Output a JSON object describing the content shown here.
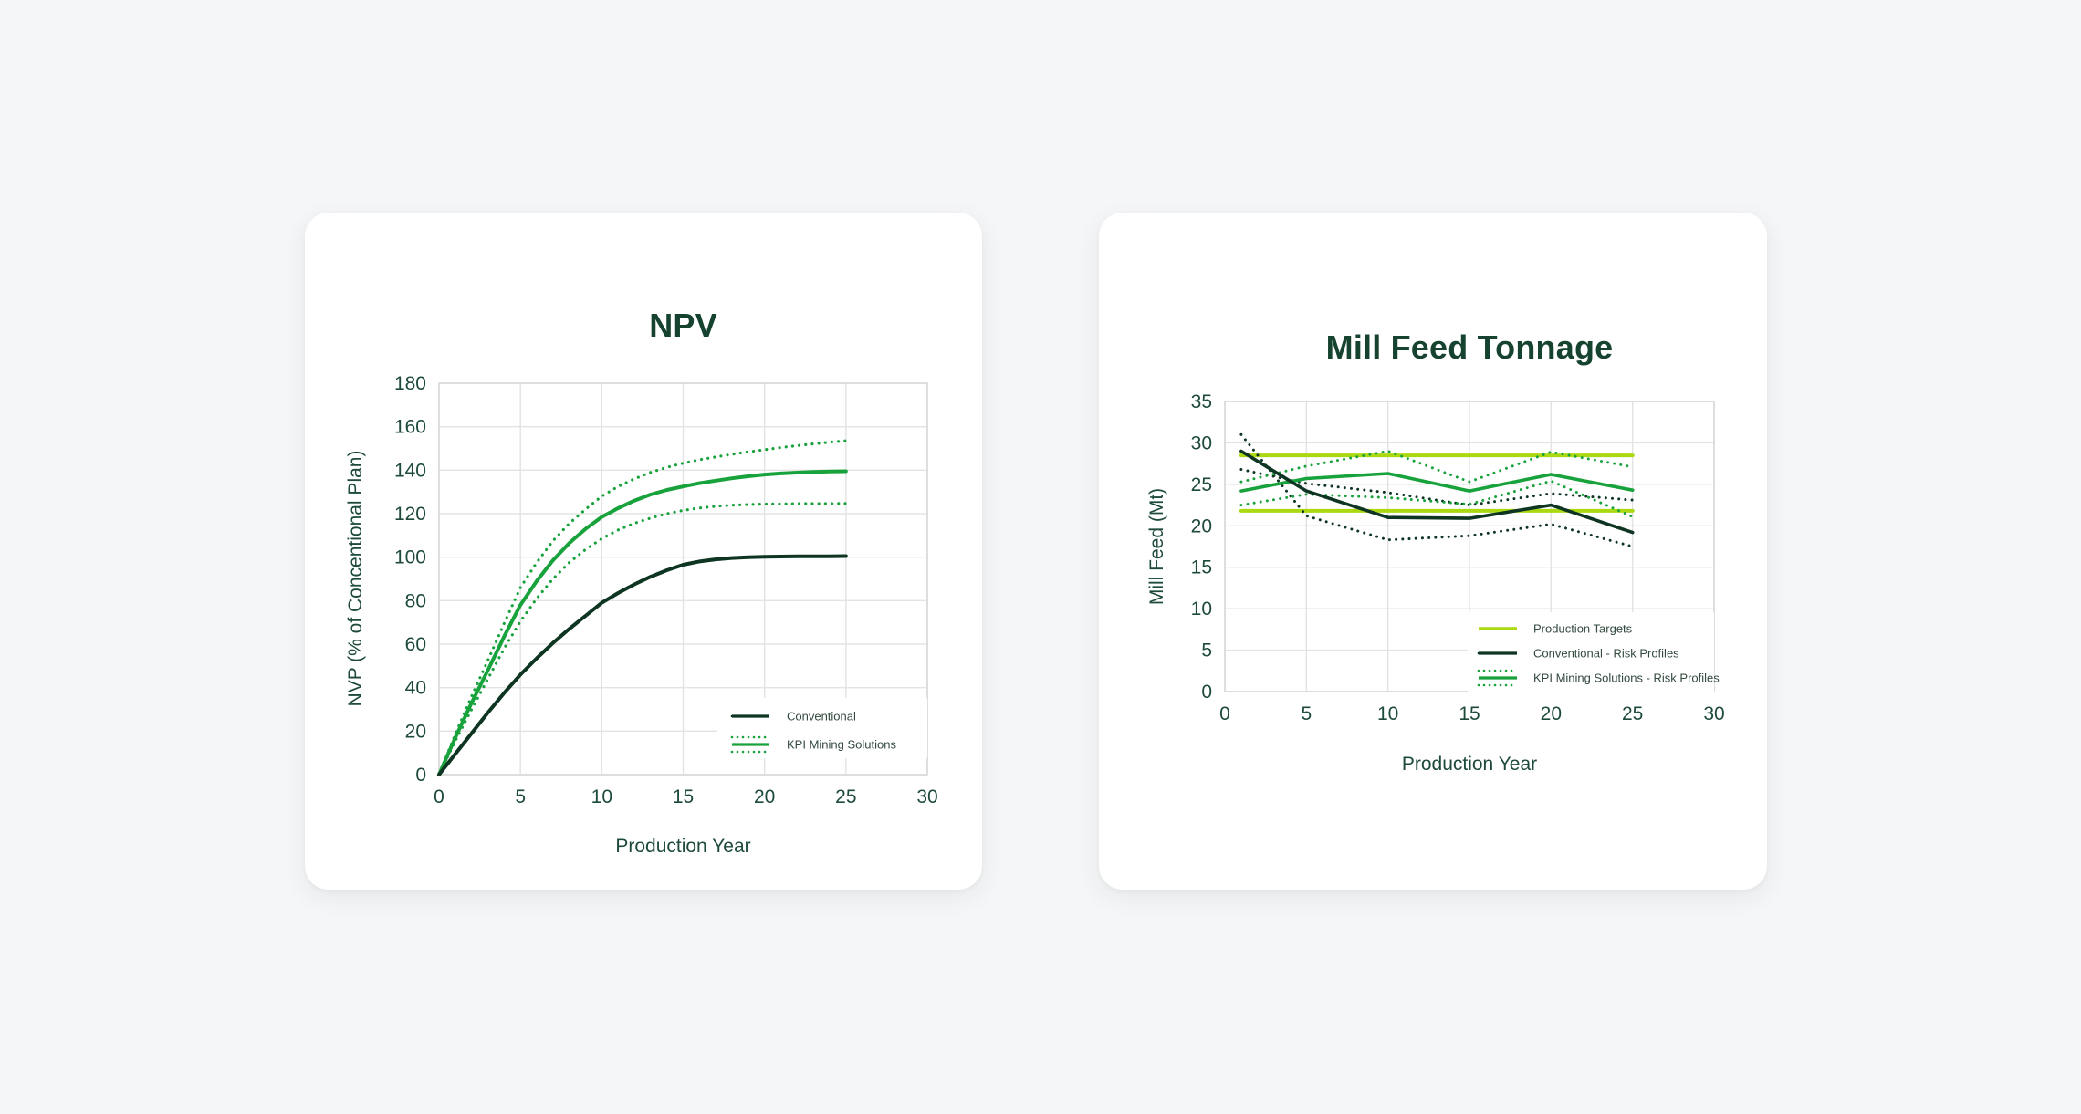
{
  "colors": {
    "page_bg": "#f5f6f8",
    "card_bg": "#ffffff",
    "dark": "#0d3522",
    "green": "#17a23b",
    "lime": "#abd911",
    "grid": "#e3e3e3",
    "plot_border": "#d9d9d9",
    "title_text": "#16432f",
    "axis_text": "#1d4a3a",
    "legend_text": "#32493e"
  },
  "chart_data": [
    {
      "type": "line",
      "title": "NPV",
      "xlabel": "Production Year",
      "ylabel": "NVP (% of Concentional Plan)",
      "xlim": [
        0,
        30
      ],
      "ylim": [
        0,
        180
      ],
      "xticks": [
        0,
        5,
        10,
        15,
        20,
        25,
        30
      ],
      "yticks": [
        180,
        160,
        140,
        120,
        100,
        80,
        60,
        40,
        20,
        0
      ],
      "grid": true,
      "legend_position": "lower-right-inside",
      "x": [
        0,
        1,
        2,
        3,
        4,
        5,
        6,
        7,
        8,
        9,
        10,
        11,
        12,
        13,
        14,
        15,
        16,
        17,
        18,
        19,
        20,
        21,
        22,
        23,
        24,
        25
      ],
      "series": [
        {
          "name": "KPI Mining Solutions - Upper Risk Profile",
          "color_key": "green",
          "style": "dotted",
          "width": 3.2,
          "values": [
            0,
            18.5,
            36,
            52.5,
            69.5,
            86,
            97.5,
            107.5,
            115.5,
            122,
            128,
            132.5,
            136,
            139,
            141.3,
            143.2,
            144.8,
            146.1,
            147.3,
            148.4,
            149.4,
            150.4,
            151.3,
            152.1,
            152.9,
            153.5
          ]
        },
        {
          "name": "KPI Mining Solutions - Lower Risk Profile",
          "color_key": "green",
          "style": "dotted",
          "width": 3.2,
          "values": [
            0,
            15.5,
            30,
            44,
            58,
            70.5,
            81,
            90,
            97.5,
            103.5,
            108.5,
            112.5,
            115.6,
            118,
            120,
            121.5,
            122.6,
            123.4,
            123.9,
            124.2,
            124.4,
            124.5,
            124.6,
            124.6,
            124.6,
            124.7
          ]
        },
        {
          "name": "KPI Mining Solutions",
          "color_key": "green",
          "style": "solid",
          "width": 4,
          "values": [
            0,
            17,
            33,
            48,
            63.5,
            78,
            89,
            98.5,
            106.5,
            113,
            118.5,
            122.5,
            126,
            128.8,
            130.9,
            132.5,
            134,
            135.2,
            136.3,
            137.2,
            138,
            138.5,
            138.9,
            139.2,
            139.4,
            139.5
          ]
        },
        {
          "name": "Conventional",
          "color_key": "dark",
          "style": "solid",
          "width": 4,
          "values": [
            0,
            9.5,
            19,
            28.5,
            37.5,
            46,
            53.5,
            60.5,
            67,
            73,
            79,
            83.5,
            87.5,
            91,
            94,
            96.5,
            98,
            99,
            99.6,
            100,
            100.2,
            100.3,
            100.4,
            100.4,
            100.4,
            100.5
          ]
        }
      ],
      "legend": [
        {
          "label": "Conventional",
          "swatch": "solid+dots:dark"
        },
        {
          "label": "KPI Mining Solutions",
          "swatch": "band:green"
        }
      ]
    },
    {
      "type": "line",
      "title": "Mill Feed Tonnage",
      "xlabel": "Production Year",
      "ylabel": "Mill Feed (Mt)",
      "xlim": [
        0,
        30
      ],
      "ylim": [
        0,
        35
      ],
      "xticks": [
        0,
        5,
        10,
        15,
        20,
        25,
        30
      ],
      "yticks": [
        35,
        30,
        25,
        20,
        15,
        10,
        5,
        0
      ],
      "grid": true,
      "legend_position": "lower-right-inside",
      "x": [
        1,
        5,
        10,
        15,
        20,
        25
      ],
      "series": [
        {
          "name": "Production Targets - Upper",
          "color_key": "lime",
          "style": "solid",
          "width": 4,
          "values": [
            28.5,
            28.5,
            28.5,
            28.5,
            28.5,
            28.5
          ]
        },
        {
          "name": "Production Targets - Lower",
          "color_key": "lime",
          "style": "solid",
          "width": 4,
          "values": [
            21.8,
            21.8,
            21.8,
            21.8,
            21.8,
            21.8
          ]
        },
        {
          "name": "Conventional - Upper Risk Profile",
          "color_key": "dark",
          "style": "dotted",
          "width": 3,
          "values": [
            26.8,
            25.1,
            24.0,
            22.5,
            23.9,
            23.1
          ]
        },
        {
          "name": "Conventional - Lower Risk Profile",
          "color_key": "dark",
          "style": "dotted",
          "width": 3,
          "values": [
            31.0,
            21.2,
            18.3,
            18.8,
            20.2,
            17.5
          ]
        },
        {
          "name": "KPI Mining Solutions - Upper Risk Profile",
          "color_key": "green",
          "style": "dotted",
          "width": 3,
          "values": [
            25.3,
            27.2,
            29.0,
            25.3,
            28.9,
            27.1
          ]
        },
        {
          "name": "KPI Mining Solutions - Lower Risk Profile",
          "color_key": "green",
          "style": "dotted",
          "width": 3,
          "values": [
            22.5,
            23.8,
            23.4,
            22.6,
            25.4,
            21.1
          ]
        },
        {
          "name": "KPI Mining Solutions",
          "color_key": "green",
          "style": "solid",
          "width": 3.6,
          "values": [
            24.2,
            25.7,
            26.3,
            24.2,
            26.2,
            24.3
          ]
        },
        {
          "name": "Conventional",
          "color_key": "dark",
          "style": "solid",
          "width": 3.6,
          "values": [
            29.0,
            24.2,
            21.0,
            20.9,
            22.5,
            19.2
          ]
        }
      ],
      "legend": [
        {
          "label": "Production Targets",
          "swatch": "solid:lime"
        },
        {
          "label": "Conventional - Risk Profiles",
          "swatch": "solid+dots:dark"
        },
        {
          "label": "KPI Mining Solutions - Risk Profiles",
          "swatch": "band:green"
        }
      ]
    }
  ]
}
